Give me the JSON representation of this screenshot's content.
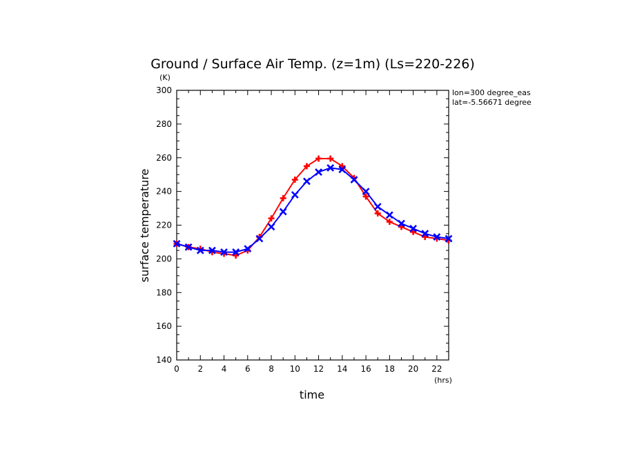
{
  "chart_data": {
    "type": "line",
    "title": "Ground / Surface Air Temp. (z=1m) (Ls=220-226)",
    "ylabel": "surface temperature",
    "yunit": "(K)",
    "xlabel": "time",
    "xunit": "(hrs)",
    "annotations": [
      "lon=300 degree_eas",
      "lat=-5.56671 degree"
    ],
    "xlim": [
      0,
      23
    ],
    "ylim": [
      140,
      300
    ],
    "xticks": [
      0,
      2,
      4,
      6,
      8,
      10,
      12,
      14,
      16,
      18,
      20,
      22
    ],
    "yticks": [
      140,
      160,
      180,
      200,
      220,
      240,
      260,
      280,
      300
    ],
    "grid": false,
    "x": [
      0,
      1,
      2,
      3,
      4,
      5,
      6,
      7,
      8,
      9,
      10,
      11,
      12,
      13,
      14,
      15,
      16,
      17,
      18,
      19,
      20,
      21,
      22,
      23
    ],
    "series": [
      {
        "color": "#ff0000",
        "marker": "plus",
        "values": [
          209,
          207,
          206,
          204,
          203,
          202,
          205,
          213,
          224,
          236,
          247,
          255,
          259.5,
          259.5,
          255,
          248,
          237,
          227,
          222,
          219,
          216,
          213,
          212,
          211
        ]
      },
      {
        "color": "#0000ff",
        "marker": "x",
        "values": [
          209,
          207,
          205,
          205,
          204,
          204,
          206,
          212,
          219,
          228,
          238,
          246,
          251.5,
          254,
          253,
          247,
          240,
          231,
          226,
          221,
          218,
          215,
          213,
          212
        ]
      }
    ]
  }
}
